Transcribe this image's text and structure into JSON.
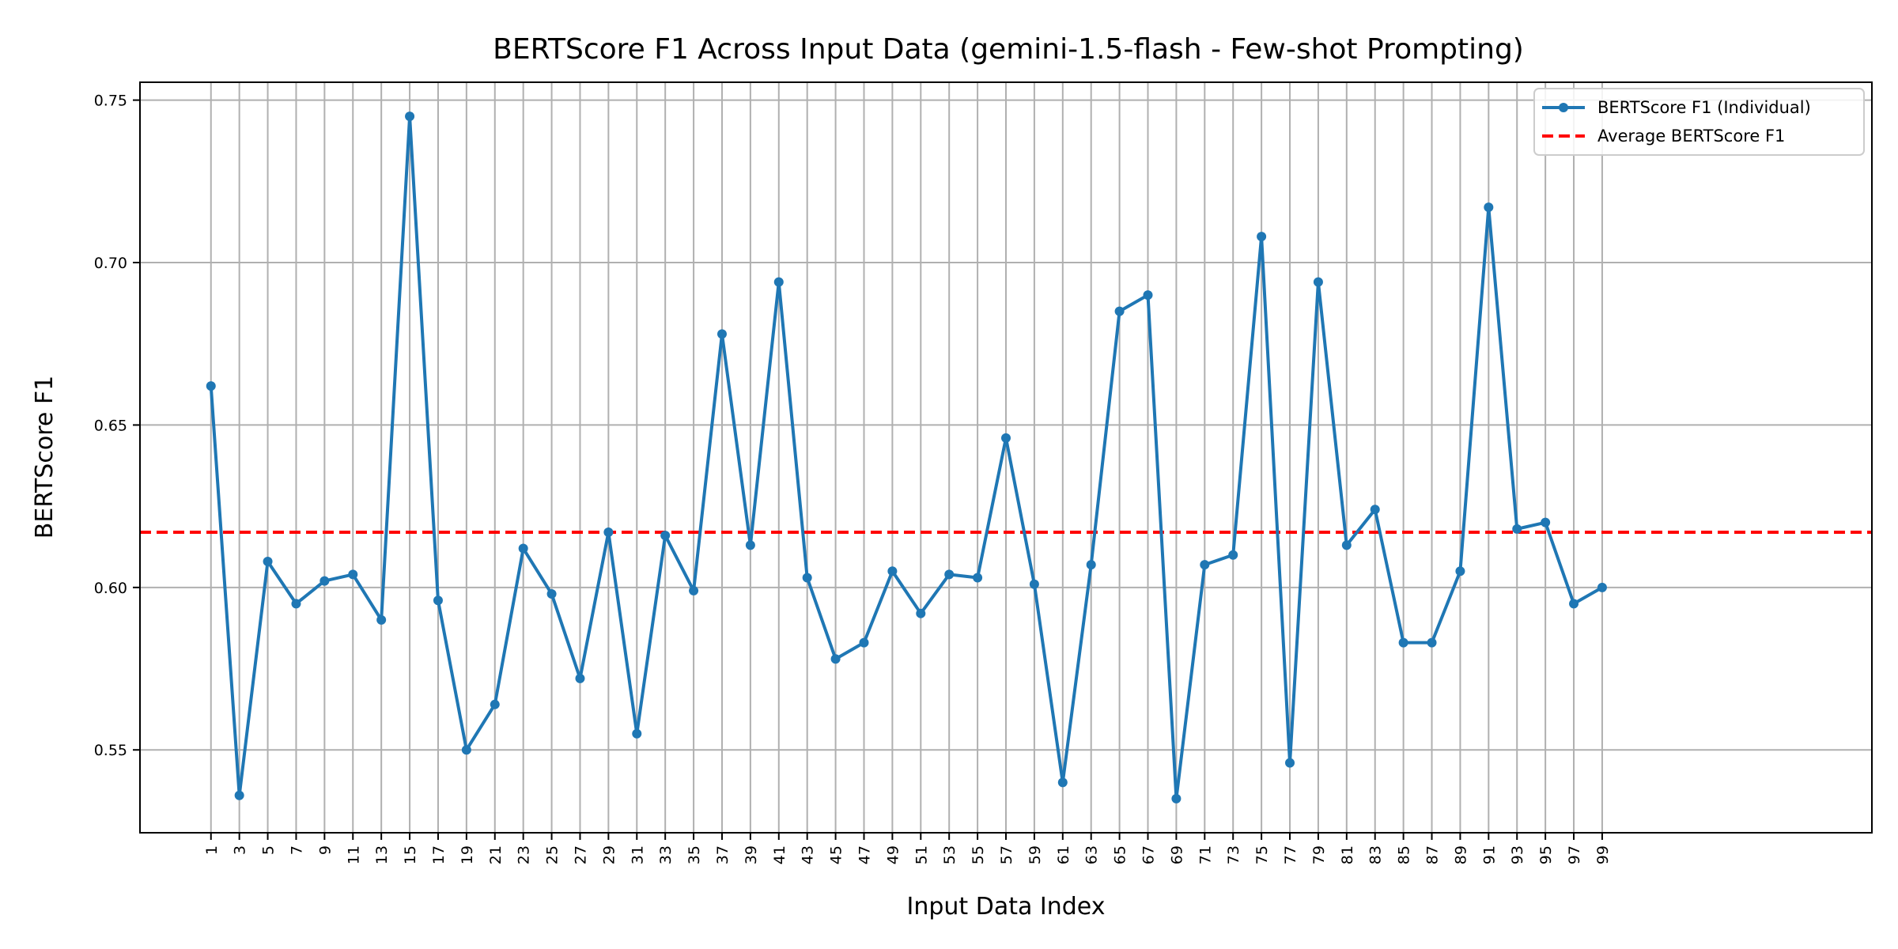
{
  "chart_data": {
    "type": "line",
    "title": "BERTScore F1 Across Input Data (gemini-1.5-flash - Few-shot Prompting)",
    "xlabel": "Input Data Index",
    "ylabel": "BERTScore F1",
    "x": [
      1,
      3,
      5,
      7,
      9,
      11,
      13,
      15,
      17,
      19,
      21,
      23,
      25,
      27,
      29,
      31,
      33,
      35,
      37,
      39,
      41,
      43,
      45,
      47,
      49,
      51,
      53,
      55,
      57,
      59,
      61,
      63,
      65,
      67,
      69,
      71,
      73,
      75,
      77,
      79,
      81,
      83,
      85,
      87,
      89,
      91,
      93,
      95,
      97,
      99
    ],
    "x_tick_labels": [
      "1",
      "3",
      "5",
      "7",
      "9",
      "11",
      "13",
      "15",
      "17",
      "19",
      "21",
      "23",
      "25",
      "27",
      "29",
      "31",
      "33",
      "35",
      "37",
      "39",
      "41",
      "43",
      "45",
      "47",
      "49",
      "51",
      "53",
      "55",
      "57",
      "59",
      "61",
      "63",
      "65",
      "67",
      "69",
      "71",
      "73",
      "75",
      "77",
      "79",
      "81",
      "83",
      "85",
      "87",
      "89",
      "91",
      "93",
      "95",
      "97",
      "99"
    ],
    "y_ticks": [
      0.55,
      0.6,
      0.65,
      0.7,
      0.75
    ],
    "y_tick_labels": [
      "0.55",
      "0.60",
      "0.65",
      "0.70",
      "0.75"
    ],
    "ylim": [
      0.5245,
      0.7555
    ],
    "xlim": [
      -4,
      118
    ],
    "grid": true,
    "legend_position": "top-right",
    "series": [
      {
        "name": "BERTScore F1 (Individual)",
        "color": "#1f77b4",
        "style": "solid-line-with-markers",
        "values": [
          0.662,
          0.536,
          0.608,
          0.595,
          0.602,
          0.604,
          0.59,
          0.745,
          0.596,
          0.55,
          0.564,
          0.612,
          0.598,
          0.572,
          0.617,
          0.555,
          0.616,
          0.599,
          0.678,
          0.613,
          0.694,
          0.603,
          0.578,
          0.583,
          0.605,
          0.592,
          0.604,
          0.603,
          0.646,
          0.601,
          0.54,
          0.607,
          0.685,
          0.69,
          0.535,
          0.607,
          0.61,
          0.708,
          0.546,
          0.694,
          0.613,
          0.624,
          0.583,
          0.583,
          0.605,
          0.717,
          0.618,
          0.62,
          0.595,
          0.6
        ]
      },
      {
        "name": "Average BERTScore F1",
        "color": "#ff0000",
        "style": "dashed-horizontal",
        "value": 0.617
      }
    ]
  }
}
